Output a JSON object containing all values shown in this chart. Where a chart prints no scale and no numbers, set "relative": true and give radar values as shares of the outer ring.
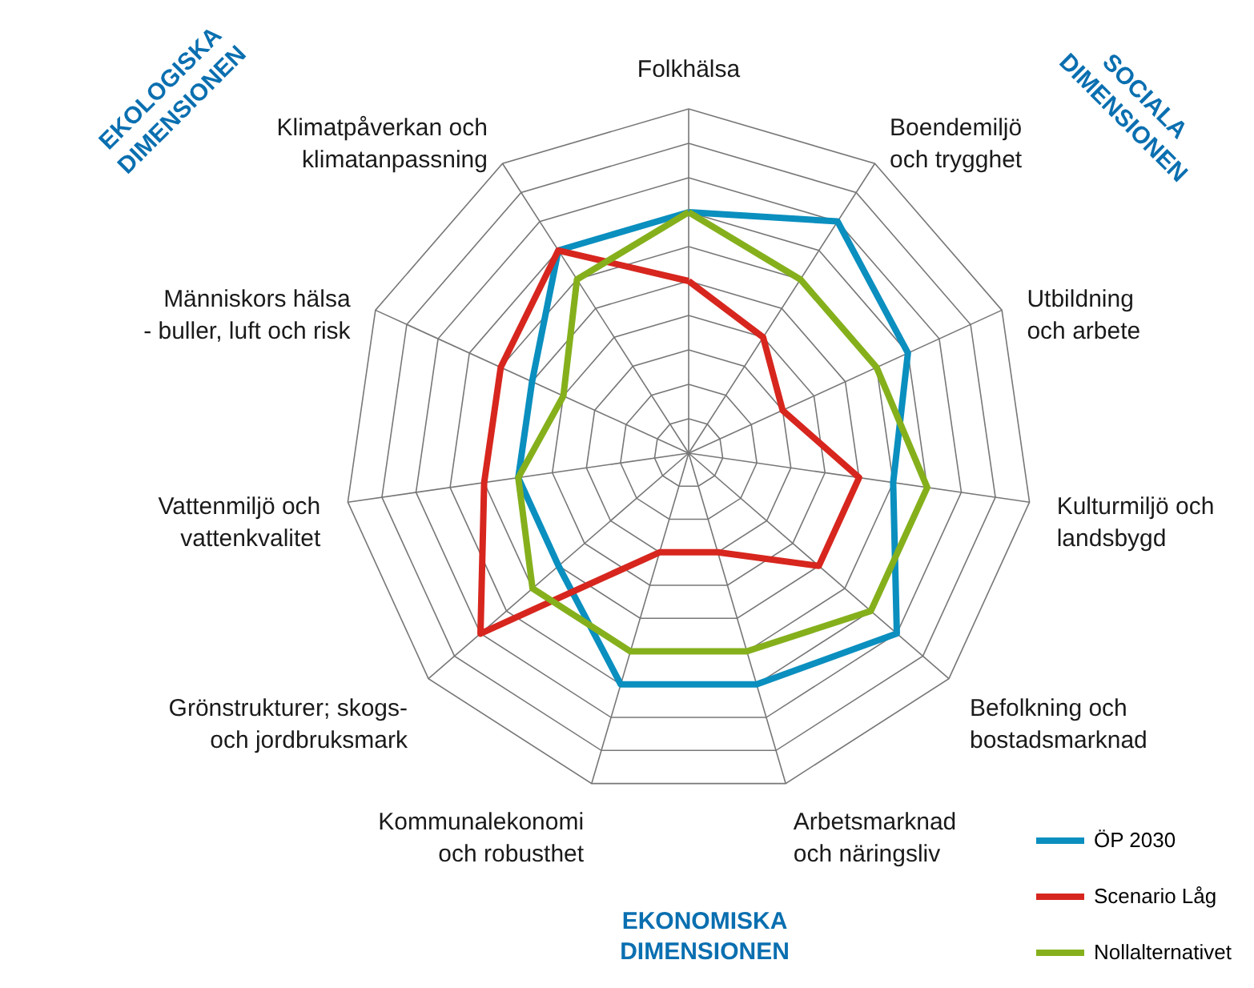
{
  "chart_data": {
    "type": "radar",
    "relative": true,
    "categories": [
      "Folkhälsa",
      "Boendemiljö\noch trygghet",
      "Utbildning\noch arbete",
      "Kulturmiljö och\nlandsbygd",
      "Befolkning och\nbostadsmarknad",
      "Arbetsmarknad\noch näringsliv",
      "Kommunalekonomi\noch robusthet",
      "Grönstrukturer; skogs-\noch jordbruksmark",
      "Vattenmiljö och\nvattenkvalitet",
      "Människors hälsa\n- buller, luft och risk",
      "Klimatpåverkan och\nklimatanpassning"
    ],
    "series": [
      {
        "name": "ÖP 2030",
        "color": "#0a8fbf",
        "values": [
          0.7,
          0.8,
          0.7,
          0.6,
          0.8,
          0.7,
          0.7,
          0.5,
          0.5,
          0.5,
          0.7
        ]
      },
      {
        "name": "Scenario Låg",
        "color": "#d7261e",
        "values": [
          0.5,
          0.4,
          0.3,
          0.5,
          0.5,
          0.3,
          0.3,
          0.8,
          0.6,
          0.6,
          0.7
        ]
      },
      {
        "name": "Nollalternativet",
        "color": "#85b01c",
        "values": [
          0.7,
          0.6,
          0.6,
          0.7,
          0.7,
          0.6,
          0.6,
          0.6,
          0.5,
          0.4,
          0.6
        ]
      }
    ],
    "annotations": [
      "EKOLOGISKA\nDIMENSIONEN",
      "SOCIALA\nDIMENSIONEN",
      "EKONOMISKA\nDIMENSIONEN"
    ],
    "legend": "bottom right",
    "grid": true
  }
}
